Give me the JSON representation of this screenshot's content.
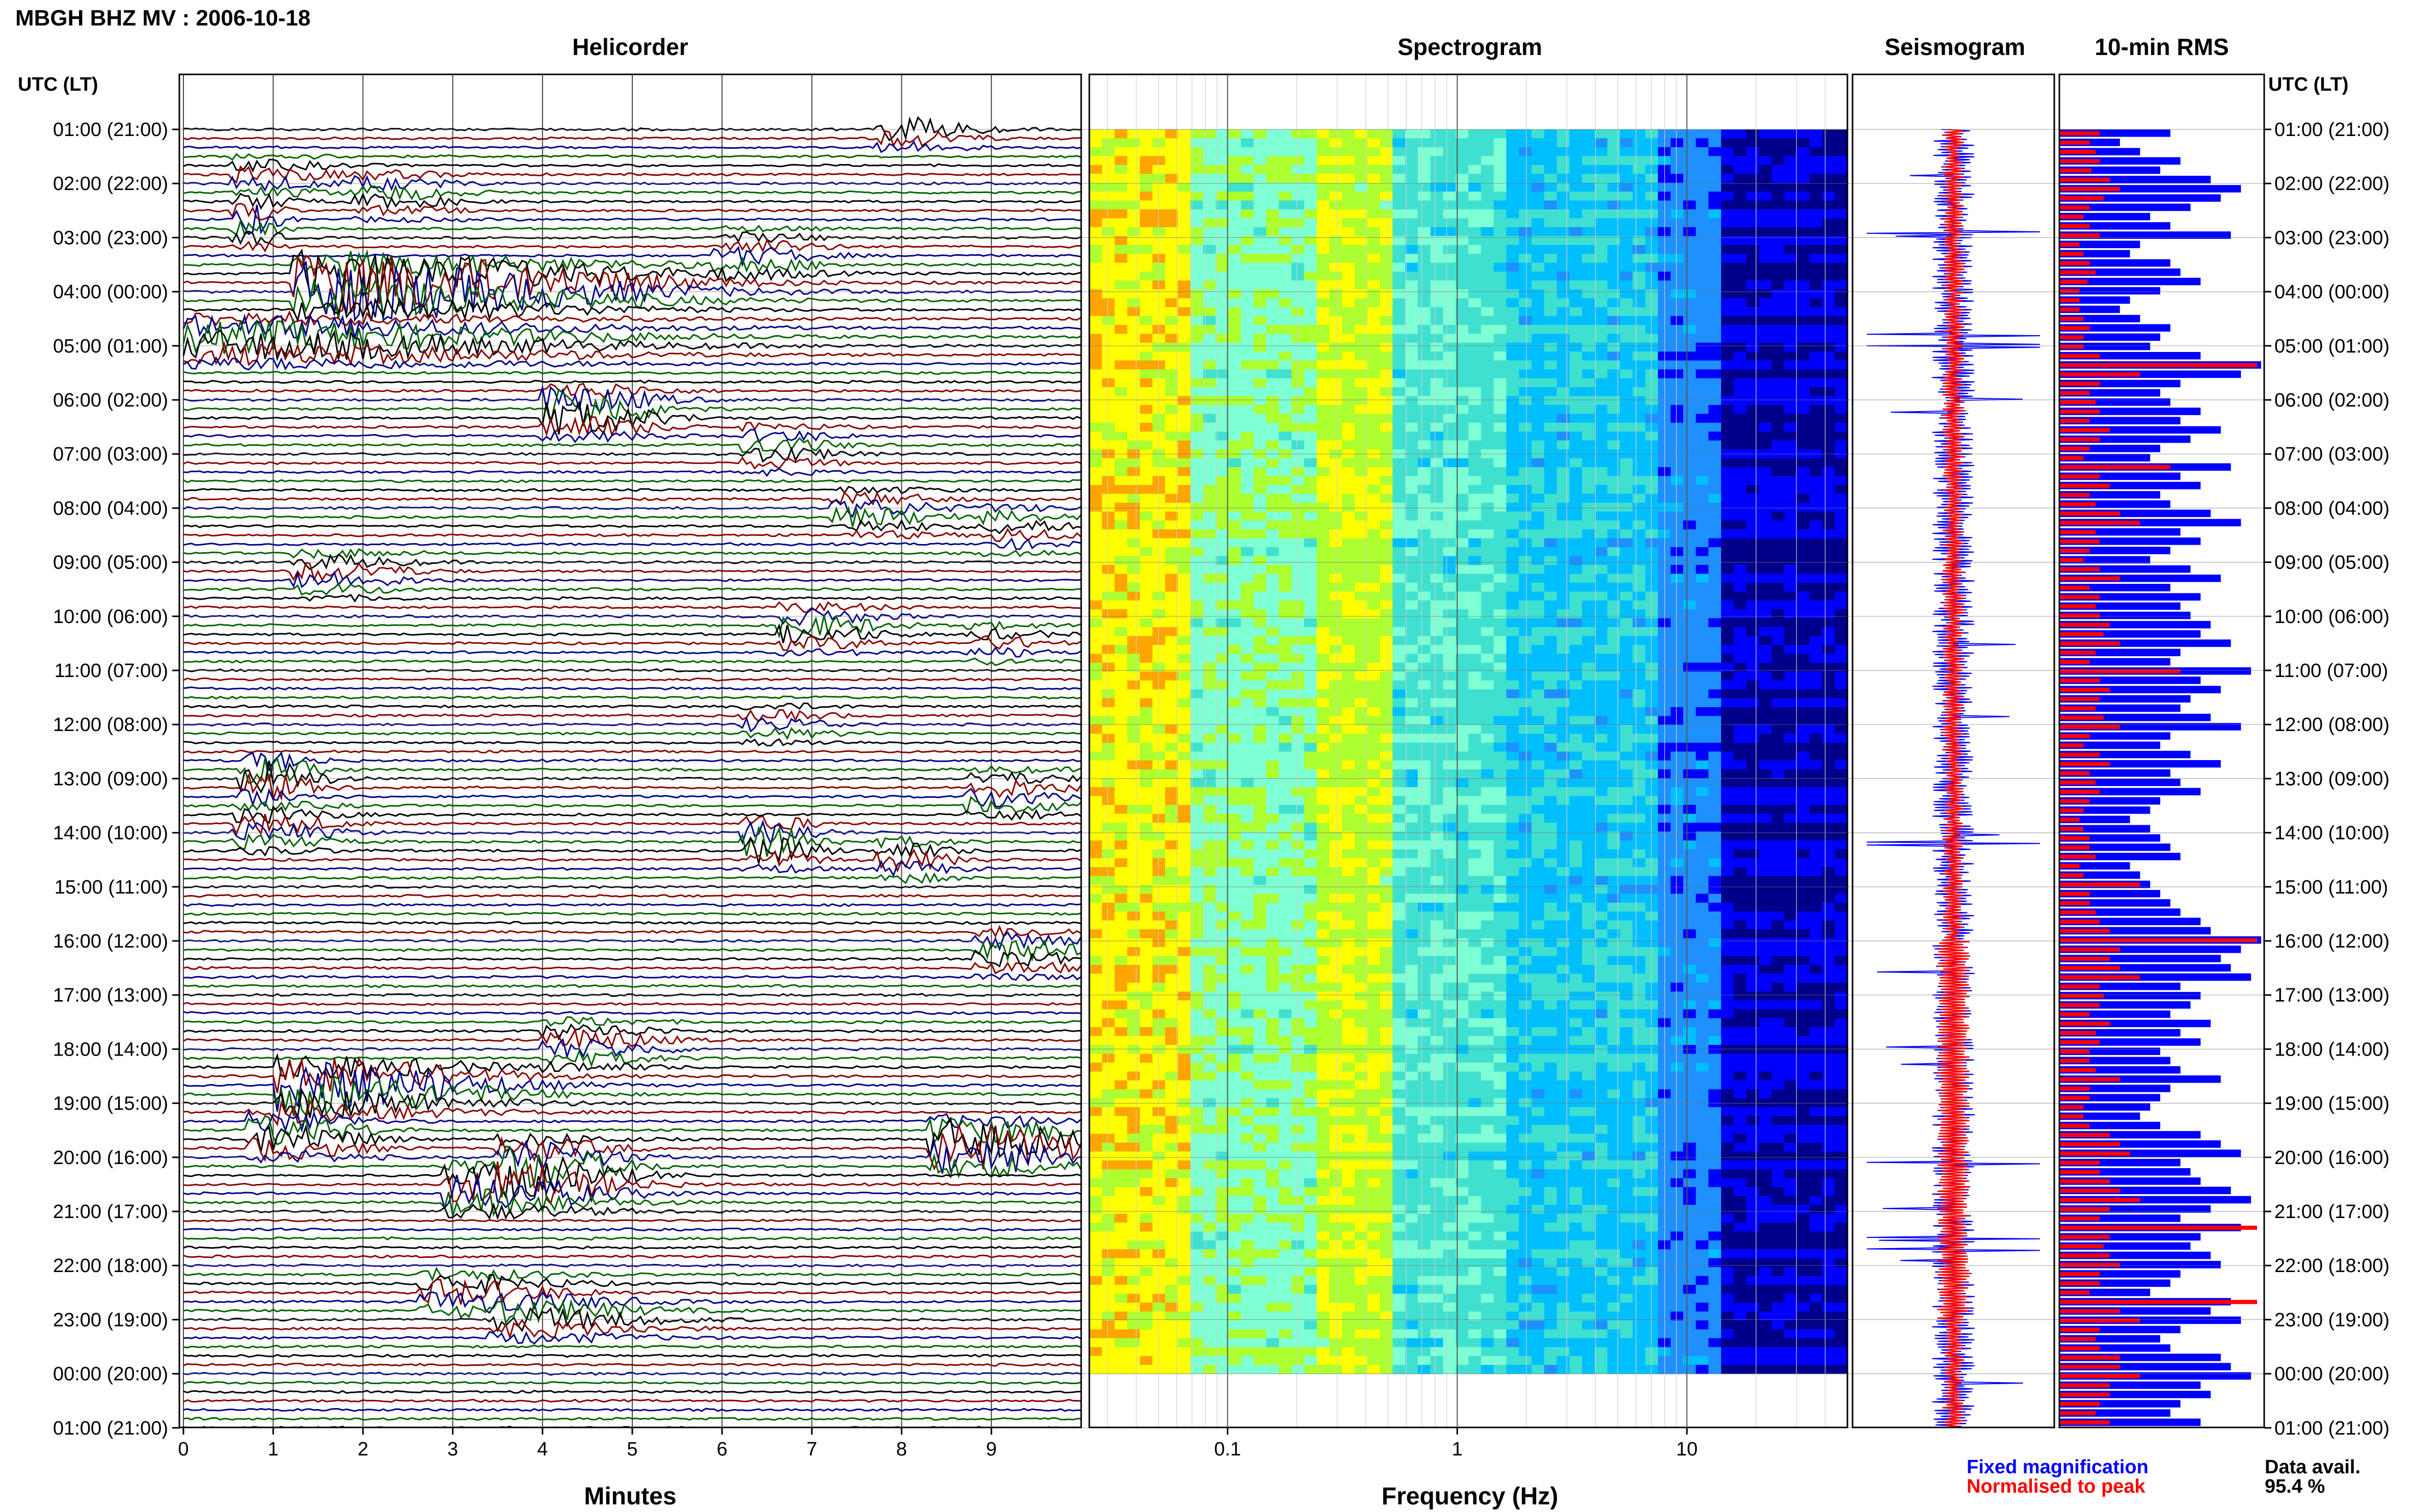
{
  "header": {
    "station_title": "MBGH BHZ MV : 2006-10-18"
  },
  "colors": {
    "trace_cycle": [
      "#000000",
      "#8b0000",
      "#00008b",
      "#006400"
    ],
    "fixed_magnification": "#0000ff",
    "normalised_to_peak": "#ff0000",
    "grid": "#bfbfbf",
    "axis": "#000000"
  },
  "chart_data": [
    {
      "type": "line",
      "title": "Helicorder",
      "xlabel": "Minutes",
      "ylabel": "UTC (LT)",
      "xlim": [
        0,
        10
      ],
      "x_ticks": [
        "0",
        "1",
        "2",
        "3",
        "4",
        "5",
        "6",
        "7",
        "8",
        "9"
      ],
      "y_ticks": [
        "01:00 (21:00)",
        "02:00 (22:00)",
        "03:00 (23:00)",
        "04:00 (00:00)",
        "05:00 (01:00)",
        "06:00 (02:00)",
        "07:00 (03:00)",
        "08:00 (04:00)",
        "09:00 (05:00)",
        "10:00 (06:00)",
        "11:00 (07:00)",
        "12:00 (08:00)",
        "13:00 (09:00)",
        "14:00 (10:00)",
        "15:00 (11:00)",
        "16:00 (12:00)",
        "17:00 (13:00)",
        "18:00 (14:00)",
        "19:00 (15:00)",
        "20:00 (16:00)",
        "21:00 (17:00)",
        "22:00 (18:00)",
        "23:00 (19:00)",
        "00:00 (20:00)",
        "01:00 (21:00)"
      ],
      "traces_per_hour": 6,
      "hours_shown": 24,
      "events": [
        {
          "hour": 0.0,
          "minute": 8.0,
          "amp": 0.9,
          "len": 0.8
        },
        {
          "hour": 0.9,
          "minute": 0.8,
          "amp": 0.6,
          "len": 1.0
        },
        {
          "hour": 1.2,
          "minute": 2.2,
          "amp": 0.6,
          "len": 0.9
        },
        {
          "hour": 1.7,
          "minute": 0.8,
          "amp": 1.2,
          "len": 0.3
        },
        {
          "hour": 2.3,
          "minute": 6.2,
          "amp": 0.7,
          "len": 0.9
        },
        {
          "hour": 2.9,
          "minute": 1.5,
          "amp": 2.8,
          "len": 3.2
        },
        {
          "hour": 3.9,
          "minute": 0.2,
          "amp": 1.4,
          "len": 4.0
        },
        {
          "hour": 5.2,
          "minute": 4.3,
          "amp": 1.6,
          "len": 1.0
        },
        {
          "hour": 5.9,
          "minute": 6.5,
          "amp": 0.7,
          "len": 0.8
        },
        {
          "hour": 7.1,
          "minute": 7.5,
          "amp": 0.8,
          "len": 1.0
        },
        {
          "hour": 7.4,
          "minute": 9.2,
          "amp": 0.6,
          "len": 0.7
        },
        {
          "hour": 8.2,
          "minute": 1.5,
          "amp": 0.8,
          "len": 1.0
        },
        {
          "hour": 9.2,
          "minute": 6.9,
          "amp": 0.9,
          "len": 0.9
        },
        {
          "hour": 9.5,
          "minute": 9.0,
          "amp": 0.5,
          "len": 0.7
        },
        {
          "hour": 11.0,
          "minute": 6.5,
          "amp": 0.5,
          "len": 0.8
        },
        {
          "hour": 12.0,
          "minute": 0.9,
          "amp": 1.5,
          "len": 0.6
        },
        {
          "hour": 12.3,
          "minute": 9.0,
          "amp": 0.9,
          "len": 0.9
        },
        {
          "hour": 12.9,
          "minute": 0.8,
          "amp": 0.9,
          "len": 0.9
        },
        {
          "hour": 13.2,
          "minute": 6.5,
          "amp": 1.3,
          "len": 0.6
        },
        {
          "hour": 13.5,
          "minute": 8.0,
          "amp": 0.8,
          "len": 0.6
        },
        {
          "hour": 15.2,
          "minute": 9.1,
          "amp": 0.9,
          "len": 1.0
        },
        {
          "hour": 16.9,
          "minute": 4.3,
          "amp": 0.9,
          "len": 1.0
        },
        {
          "hour": 17.7,
          "minute": 1.3,
          "amp": 2.2,
          "len": 2.0
        },
        {
          "hour": 18.6,
          "minute": 1.0,
          "amp": 1.4,
          "len": 1.0
        },
        {
          "hour": 18.8,
          "minute": 8.6,
          "amp": 2.0,
          "len": 1.4
        },
        {
          "hour": 19.1,
          "minute": 3.8,
          "amp": 1.5,
          "len": 1.0
        },
        {
          "hour": 19.6,
          "minute": 3.2,
          "amp": 1.6,
          "len": 1.5
        },
        {
          "hour": 21.5,
          "minute": 2.9,
          "amp": 1.0,
          "len": 1.3
        },
        {
          "hour": 22.0,
          "minute": 3.7,
          "amp": 0.9,
          "len": 1.5
        }
      ]
    },
    {
      "type": "heatmap",
      "title": "Spectrogram",
      "xlabel": "Frequency (Hz)",
      "x_scale": "log",
      "xlim": [
        0.025,
        50
      ],
      "x_ticks": [
        "0.1",
        "1",
        "10"
      ],
      "colormap": [
        "#00008b",
        "#0000ff",
        "#1e90ff",
        "#00bfff",
        "#40e0d0",
        "#7fffd4",
        "#adff2f",
        "#ffff00",
        "#ffa500",
        "#ff4500"
      ],
      "hours_shown": 23
    },
    {
      "type": "area",
      "title": "Seismogram",
      "series": [
        {
          "name": "Fixed magnification",
          "color": "#0000ff"
        },
        {
          "name": "Normalised to peak",
          "color": "#ff0000"
        }
      ],
      "spikes_hours": [
        1.9,
        3.8,
        4.0,
        13.2,
        19.1,
        20.5,
        20.7
      ]
    },
    {
      "type": "bar",
      "title": "10-min RMS",
      "ylabel": "UTC (LT)",
      "y_ticks": [
        "01:00 (21:00)",
        "02:00 (22:00)",
        "03:00 (23:00)",
        "04:00 (00:00)",
        "05:00 (01:00)",
        "06:00 (02:00)",
        "07:00 (03:00)",
        "08:00 (04:00)",
        "09:00 (05:00)",
        "10:00 (06:00)",
        "11:00 (07:00)",
        "12:00 (08:00)",
        "13:00 (09:00)",
        "14:00 (10:00)",
        "15:00 (11:00)",
        "16:00 (12:00)",
        "17:00 (13:00)",
        "18:00 (14:00)",
        "19:00 (15:00)",
        "20:00 (16:00)",
        "21:00 (17:00)",
        "22:00 (18:00)",
        "23:00 (19:00)",
        "00:00 (20:00)",
        "01:00 (21:00)"
      ],
      "series": [
        {
          "name": "Fixed magnification",
          "color": "#0000ff",
          "values": [
            0.55,
            0.3,
            0.4,
            0.6,
            0.5,
            0.75,
            0.9,
            0.8,
            0.65,
            0.45,
            0.55,
            0.85,
            0.4,
            0.35,
            0.55,
            0.6,
            0.7,
            0.5,
            0.35,
            0.3,
            0.4,
            0.55,
            0.5,
            0.45,
            0.7,
            1.0,
            0.9,
            0.6,
            0.5,
            0.55,
            0.7,
            0.6,
            0.8,
            0.65,
            0.5,
            0.45,
            0.85,
            0.6,
            0.7,
            0.5,
            0.55,
            0.75,
            0.9,
            0.6,
            0.7,
            0.55,
            0.45,
            0.65,
            0.8,
            0.55,
            0.7,
            0.6,
            0.65,
            0.75,
            0.7,
            0.85,
            0.6,
            0.55,
            0.95,
            0.7,
            0.8,
            0.65,
            0.6,
            0.75,
            0.9,
            0.55,
            0.5,
            0.65,
            0.8,
            0.55,
            0.6,
            0.7,
            0.5,
            0.45,
            0.35,
            0.45,
            0.5,
            0.55,
            0.6,
            0.35,
            0.4,
            0.45,
            0.5,
            0.55,
            0.6,
            0.7,
            0.75,
            1.0,
            0.9,
            0.8,
            0.85,
            0.95,
            0.6,
            0.7,
            0.65,
            0.55,
            0.75,
            0.6,
            0.7,
            0.5,
            0.55,
            0.6,
            0.8,
            0.55,
            0.5,
            0.45,
            0.4,
            0.5,
            0.7,
            0.8,
            0.9,
            0.6,
            0.65,
            0.7,
            0.85,
            0.95,
            0.75,
            0.6,
            0.9,
            0.7,
            0.65,
            0.75,
            0.8,
            0.6,
            0.55,
            0.45,
            0.85,
            0.75,
            0.9,
            0.6,
            0.5,
            0.55,
            0.8,
            0.85,
            0.95,
            0.7,
            0.75,
            0.6,
            0.55,
            0.7
          ]
        },
        {
          "name": "Normalised to peak",
          "color": "#ff0000",
          "values": [
            0.2,
            0.15,
            0.18,
            0.2,
            0.16,
            0.25,
            0.3,
            0.22,
            0.15,
            0.12,
            0.15,
            0.2,
            0.1,
            0.12,
            0.15,
            0.18,
            0.14,
            0.1,
            0.1,
            0.1,
            0.12,
            0.15,
            0.12,
            0.12,
            0.2,
            0.98,
            0.4,
            0.2,
            0.15,
            0.18,
            0.2,
            0.15,
            0.25,
            0.2,
            0.15,
            0.12,
            0.55,
            0.2,
            0.25,
            0.15,
            0.18,
            0.3,
            0.4,
            0.18,
            0.2,
            0.15,
            0.12,
            0.2,
            0.3,
            0.15,
            0.2,
            0.18,
            0.2,
            0.25,
            0.22,
            0.3,
            0.18,
            0.15,
            0.6,
            0.2,
            0.25,
            0.2,
            0.18,
            0.22,
            0.3,
            0.15,
            0.12,
            0.2,
            0.25,
            0.15,
            0.18,
            0.2,
            0.15,
            0.12,
            0.1,
            0.12,
            0.15,
            0.15,
            0.18,
            0.1,
            0.12,
            0.4,
            0.15,
            0.15,
            0.18,
            0.2,
            0.25,
            0.98,
            0.3,
            0.25,
            0.3,
            0.4,
            0.2,
            0.22,
            0.2,
            0.15,
            0.25,
            0.18,
            0.2,
            0.15,
            0.15,
            0.18,
            0.3,
            0.15,
            0.15,
            0.12,
            0.12,
            0.15,
            0.25,
            0.3,
            0.35,
            0.2,
            0.2,
            0.25,
            0.3,
            0.4,
            0.25,
            0.2,
            0.98,
            0.25,
            0.22,
            0.25,
            0.3,
            0.2,
            0.2,
            0.15,
            0.98,
            0.3,
            0.4,
            0.2,
            0.18,
            0.2,
            0.3,
            0.3,
            0.4,
            0.25,
            0.25,
            0.2,
            0.18,
            0.25
          ]
        }
      ]
    }
  ],
  "panels": {
    "helicorder_title": "Helicorder",
    "spectrogram_title": "Spectrogram",
    "seismogram_title": "Seismogram",
    "rms_title": "10-min RMS",
    "left_axis_title": "UTC (LT)",
    "right_axis_title": "UTC (LT)",
    "helicorder_xlabel": "Minutes",
    "spectrogram_xlabel": "Frequency (Hz)"
  },
  "legend": {
    "fixed_label": "Fixed magnification",
    "normalised_label": "Normalised to peak"
  },
  "availability": {
    "label": "Data avail.",
    "value": "95.4 %"
  }
}
